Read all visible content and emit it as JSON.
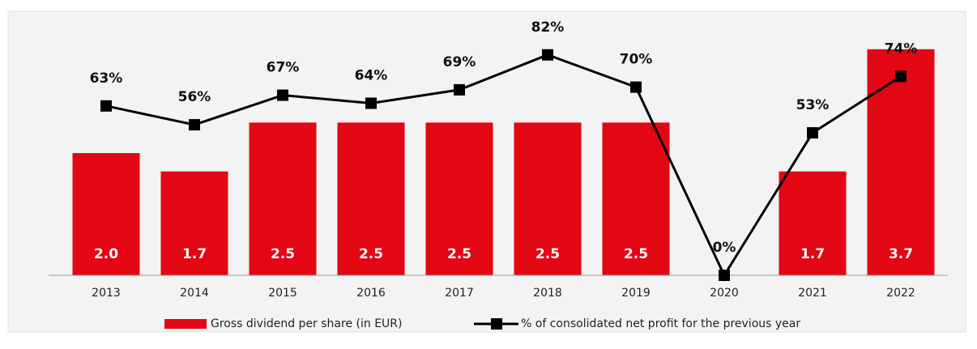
{
  "chart_data": {
    "type": "bar-line",
    "categories": [
      "2013",
      "2014",
      "2015",
      "2016",
      "2017",
      "2018",
      "2019",
      "2020",
      "2021",
      "2022"
    ],
    "series": [
      {
        "name": "Gross dividend per share (in EUR)",
        "type": "bar",
        "color": "#e30613",
        "values": [
          2.0,
          1.7,
          2.5,
          2.5,
          2.5,
          2.5,
          2.5,
          0,
          1.7,
          3.7
        ],
        "value_labels": [
          "2.0",
          "1.7",
          "2.5",
          "2.5",
          "2.5",
          "2.5",
          "2.5",
          null,
          "1.7",
          "3.7"
        ]
      },
      {
        "name": "% of consolidated net profit for the previous year",
        "type": "line",
        "color": "#000000",
        "axis": "y2",
        "values": [
          63,
          56,
          67,
          64,
          69,
          82,
          70,
          0,
          53,
          74
        ],
        "value_labels": [
          "63%",
          "56%",
          "67%",
          "64%",
          "69%",
          "82%",
          "70%",
          "0%",
          "53%",
          "74%"
        ]
      }
    ],
    "ylim": [
      0,
      4.4
    ],
    "y2lim": [
      0,
      100
    ],
    "legend": "bottom"
  }
}
